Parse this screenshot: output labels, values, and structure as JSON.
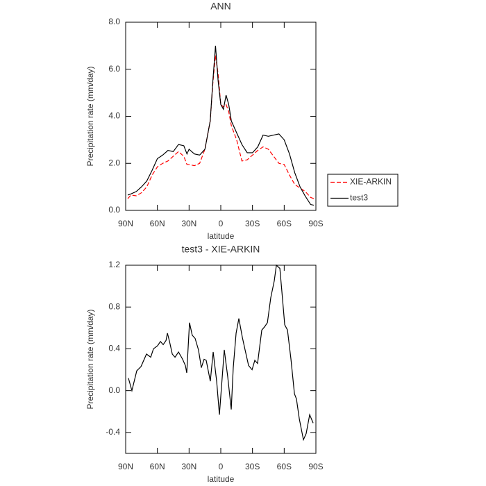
{
  "chart_data": [
    {
      "type": "line",
      "title": "ANN",
      "xlabel": "latitude",
      "ylabel": "Precipitation rate (mm/day)",
      "x": [
        88,
        85,
        80,
        75,
        70,
        65,
        60,
        55,
        50,
        45,
        40,
        35,
        32,
        30,
        25,
        20,
        15,
        10,
        7.5,
        5,
        2.5,
        0,
        -2.5,
        -5,
        -7.5,
        -10,
        -15,
        -20,
        -25,
        -30,
        -35,
        -40,
        -45,
        -50,
        -55,
        -60,
        -65,
        -70,
        -75,
        -80,
        -85,
        -88
      ],
      "series": [
        {
          "name": "XIE-ARKIN",
          "color": "#ff0000",
          "line_style": "dashed",
          "values": [
            0.5,
            0.65,
            0.62,
            0.75,
            1.0,
            1.5,
            1.85,
            2.0,
            2.1,
            2.3,
            2.5,
            2.3,
            1.95,
            1.95,
            1.9,
            2.0,
            2.6,
            3.8,
            5.4,
            6.6,
            5.8,
            4.5,
            4.4,
            4.5,
            4.2,
            3.6,
            3.0,
            2.1,
            2.15,
            2.35,
            2.55,
            2.7,
            2.6,
            2.3,
            2.0,
            1.95,
            1.5,
            1.1,
            0.95,
            0.8,
            0.55,
            0.5
          ]
        },
        {
          "name": "test3",
          "color": "#000000",
          "line_style": "solid",
          "values": [
            0.65,
            0.7,
            0.8,
            1.0,
            1.25,
            1.7,
            2.2,
            2.35,
            2.55,
            2.5,
            2.8,
            2.75,
            2.4,
            2.6,
            2.4,
            2.35,
            2.6,
            3.8,
            5.5,
            7.0,
            5.5,
            4.5,
            4.3,
            4.9,
            4.5,
            3.8,
            3.3,
            2.8,
            2.45,
            2.45,
            2.7,
            3.2,
            3.15,
            3.2,
            3.25,
            3.0,
            2.4,
            1.6,
            1.0,
            0.6,
            0.25,
            0.22
          ]
        }
      ],
      "xlim": [
        90,
        -90
      ],
      "xticks": [
        {
          "value": 90,
          "label": "90N"
        },
        {
          "value": 60,
          "label": "60N"
        },
        {
          "value": 30,
          "label": "30N"
        },
        0,
        {
          "value": -30,
          "label": "30S"
        },
        {
          "value": -60,
          "label": "60S"
        },
        {
          "value": -90,
          "label": "90S"
        }
      ],
      "ylim": [
        0,
        8
      ],
      "yticks": [
        {
          "value": 0,
          "label": "0.0"
        },
        {
          "value": 2,
          "label": "2.0"
        },
        {
          "value": 4,
          "label": "4.0"
        },
        {
          "value": 6,
          "label": "6.0"
        },
        {
          "value": 8,
          "label": "8.0"
        }
      ],
      "legend": "right"
    },
    {
      "type": "line",
      "title": "test3 - XIE-ARKIN",
      "xlabel": "latitude",
      "ylabel": "Precipitation rate (mm/day)",
      "x": [
        87.4,
        84.1,
        79.5,
        75.5,
        70.3,
        66.3,
        63.7,
        59.8,
        57.1,
        54.5,
        51.8,
        50.5,
        48.5,
        45.9,
        43.3,
        40.0,
        36.1,
        33.5,
        32.2,
        29.6,
        27.0,
        24.3,
        21.1,
        18.4,
        15.8,
        13.8,
        9.9,
        7.2,
        3.9,
        1.3,
        -3.3,
        -6.6,
        -9.9,
        -11.8,
        -14.5,
        -17.1,
        -20.4,
        -23.0,
        -26.3,
        -29.6,
        -32.2,
        -34.8,
        -38.8,
        -41.4,
        -44.1,
        -47.3,
        -50.6,
        -52.6,
        -55.9,
        -57.8,
        -60.5,
        -63.1,
        -66.4,
        -69.7,
        -71.6,
        -74.3,
        -78.2,
        -80.8,
        -84.1,
        -87.4
      ],
      "series": [
        {
          "name": "test3 - XIE-ARKIN",
          "color": "#000000",
          "line_style": "solid",
          "values": [
            0.12,
            0.0,
            0.19,
            0.23,
            0.35,
            0.32,
            0.4,
            0.43,
            0.47,
            0.44,
            0.48,
            0.55,
            0.47,
            0.35,
            0.32,
            0.37,
            0.3,
            0.24,
            0.17,
            0.65,
            0.53,
            0.5,
            0.39,
            0.22,
            0.3,
            0.29,
            0.09,
            0.37,
            0.09,
            -0.23,
            0.39,
            0.13,
            -0.18,
            0.22,
            0.55,
            0.69,
            0.51,
            0.39,
            0.24,
            0.2,
            0.29,
            0.26,
            0.58,
            0.61,
            0.65,
            0.89,
            1.05,
            1.2,
            1.17,
            0.95,
            0.63,
            0.58,
            0.3,
            -0.03,
            -0.08,
            -0.27,
            -0.47,
            -0.41,
            -0.23,
            -0.31
          ]
        }
      ],
      "xlim": [
        90,
        -90
      ],
      "xticks": [
        {
          "value": 90,
          "label": "90N"
        },
        {
          "value": 60,
          "label": "60N"
        },
        {
          "value": 30,
          "label": "30N"
        },
        0,
        {
          "value": -30,
          "label": "30S"
        },
        {
          "value": -60,
          "label": "60S"
        },
        {
          "value": -90,
          "label": "90S"
        }
      ],
      "ylim": [
        -0.6,
        1.2
      ],
      "yticks": [
        -0.4,
        {
          "value": 0,
          "label": "0.0"
        },
        0.4,
        0.8,
        1.2
      ]
    }
  ]
}
